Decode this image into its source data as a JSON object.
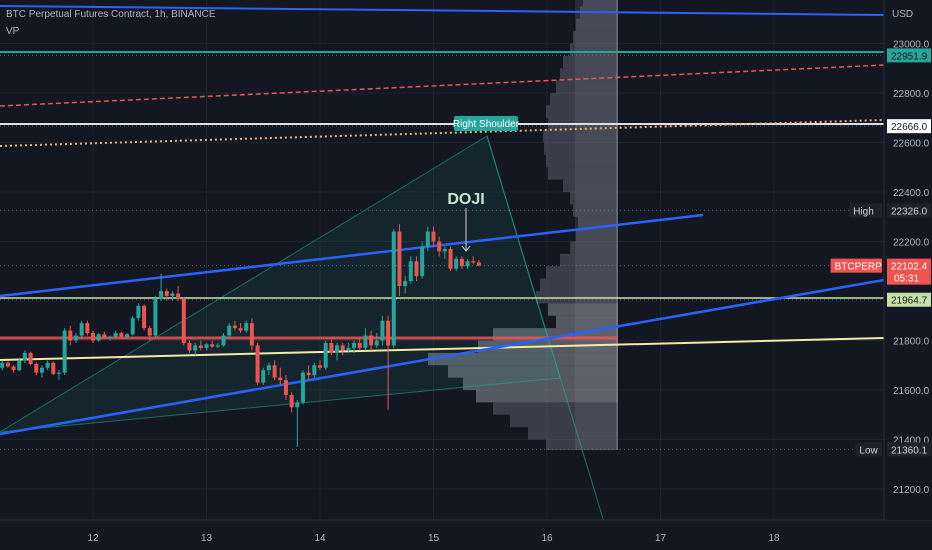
{
  "header": {
    "title": "BTC Perpetual Futures Contract, 1h, BINANCE",
    "indicator": "VP"
  },
  "chart_data": {
    "type": "candlestick",
    "currency": "USD",
    "ylim": [
      21100,
      23250
    ],
    "xlim": [
      11.0,
      19.2
    ],
    "x_ticks": [
      "12",
      "13",
      "14",
      "15",
      "16",
      "17",
      "18"
    ],
    "y_ticks": [
      "23000.0",
      "22800.0",
      "22600.0",
      "22400.0",
      "22200.0",
      "21800.0",
      "21600.0",
      "21400.0",
      "21200.0"
    ],
    "price_tags": [
      {
        "label": "",
        "value": "22951.9",
        "price": 22951.9,
        "style": "teal"
      },
      {
        "label": "",
        "value": "22666.0",
        "price": 22666.0,
        "style": "white"
      },
      {
        "label": "High",
        "value": "22326.0",
        "price": 22326.0,
        "style": "dark"
      },
      {
        "label": "BTCPERP",
        "value": "22102.4",
        "sub": "05:31",
        "price": 22102.4,
        "style": "red"
      },
      {
        "label": "",
        "value": "21964.7",
        "price": 21964.7,
        "style": "lime"
      },
      {
        "label": "Low",
        "value": "21360.1",
        "price": 21360.1,
        "style": "dark"
      }
    ],
    "annotations": [
      {
        "text": "Right Shoulder",
        "x": 15.5,
        "price": 22650
      },
      {
        "text": "DOJI",
        "x": 15.15,
        "price": 22360
      }
    ],
    "candles": [
      [
        11.05,
        21685,
        21705,
        21660,
        21690
      ],
      [
        11.1,
        21690,
        21700,
        21670,
        21675
      ],
      [
        11.15,
        21675,
        21695,
        21665,
        21690
      ],
      [
        11.2,
        21690,
        21720,
        21680,
        21710
      ],
      [
        11.25,
        21710,
        21715,
        21690,
        21695
      ],
      [
        11.3,
        21695,
        21700,
        21670,
        21680
      ],
      [
        11.35,
        21680,
        21730,
        21675,
        21720
      ],
      [
        11.4,
        21720,
        21760,
        21710,
        21750
      ],
      [
        11.45,
        21750,
        21755,
        21700,
        21705
      ],
      [
        11.5,
        21705,
        21710,
        21660,
        21670
      ],
      [
        11.55,
        21670,
        21700,
        21650,
        21690
      ],
      [
        11.6,
        21690,
        21720,
        21680,
        21710
      ],
      [
        11.65,
        21710,
        21715,
        21660,
        21665
      ],
      [
        11.7,
        21665,
        21680,
        21640,
        21670
      ],
      [
        11.75,
        21670,
        21850,
        21660,
        21840
      ],
      [
        11.8,
        21840,
        21860,
        21780,
        21800
      ],
      [
        11.85,
        21800,
        21830,
        21790,
        21820
      ],
      [
        11.9,
        21820,
        21880,
        21810,
        21870
      ],
      [
        11.95,
        21870,
        21880,
        21820,
        21830
      ],
      [
        12.0,
        21830,
        21840,
        21790,
        21800
      ],
      [
        12.05,
        21800,
        21830,
        21795,
        21825
      ],
      [
        12.1,
        21825,
        21835,
        21805,
        21810
      ],
      [
        12.15,
        21810,
        21820,
        21800,
        21815
      ],
      [
        12.2,
        21815,
        21840,
        21810,
        21830
      ],
      [
        12.25,
        21830,
        21835,
        21810,
        21815
      ],
      [
        12.3,
        21815,
        21830,
        21805,
        21825
      ],
      [
        12.35,
        21825,
        21900,
        21820,
        21890
      ],
      [
        12.4,
        21890,
        21950,
        21880,
        21940
      ],
      [
        12.45,
        21940,
        21945,
        21840,
        21850
      ],
      [
        12.5,
        21850,
        21860,
        21800,
        21820
      ],
      [
        12.55,
        21820,
        21980,
        21815,
        21970
      ],
      [
        12.6,
        21970,
        22070,
        21960,
        22000
      ],
      [
        12.65,
        22000,
        22010,
        21960,
        21980
      ],
      [
        12.7,
        21980,
        22000,
        21960,
        21990
      ],
      [
        12.75,
        21990,
        22020,
        21960,
        21970
      ],
      [
        12.8,
        21970,
        21975,
        21780,
        21790
      ],
      [
        12.85,
        21790,
        21800,
        21750,
        21760
      ],
      [
        12.9,
        21760,
        21790,
        21740,
        21780
      ],
      [
        12.95,
        21780,
        21800,
        21760,
        21770
      ],
      [
        13.0,
        21770,
        21790,
        21760,
        21785
      ],
      [
        13.05,
        21785,
        21800,
        21770,
        21775
      ],
      [
        13.1,
        21775,
        21790,
        21770,
        21780
      ],
      [
        13.15,
        21780,
        21830,
        21775,
        21820
      ],
      [
        13.2,
        21820,
        21870,
        21810,
        21860
      ],
      [
        13.25,
        21860,
        21880,
        21840,
        21850
      ],
      [
        13.3,
        21850,
        21870,
        21830,
        21840
      ],
      [
        13.35,
        21840,
        21880,
        21830,
        21870
      ],
      [
        13.4,
        21870,
        21890,
        21760,
        21780
      ],
      [
        13.45,
        21780,
        21790,
        21620,
        21630
      ],
      [
        13.5,
        21630,
        21690,
        21620,
        21680
      ],
      [
        13.55,
        21680,
        21710,
        21660,
        21700
      ],
      [
        13.6,
        21700,
        21720,
        21640,
        21650
      ],
      [
        13.65,
        21650,
        21690,
        21620,
        21640
      ],
      [
        13.7,
        21640,
        21660,
        21560,
        21580
      ],
      [
        13.75,
        21580,
        21590,
        21510,
        21530
      ],
      [
        13.8,
        21530,
        21560,
        21370,
        21550
      ],
      [
        13.85,
        21550,
        21680,
        21540,
        21670
      ],
      [
        13.9,
        21670,
        21700,
        21640,
        21660
      ],
      [
        13.95,
        21660,
        21710,
        21650,
        21700
      ],
      [
        14.0,
        21700,
        21720,
        21680,
        21690
      ],
      [
        14.05,
        21690,
        21800,
        21680,
        21790
      ],
      [
        14.1,
        21790,
        21810,
        21740,
        21750
      ],
      [
        14.15,
        21750,
        21790,
        21720,
        21780
      ],
      [
        14.2,
        21780,
        21790,
        21740,
        21760
      ],
      [
        14.25,
        21760,
        21790,
        21750,
        21770
      ],
      [
        14.3,
        21770,
        21800,
        21750,
        21790
      ],
      [
        14.35,
        21790,
        21810,
        21760,
        21770
      ],
      [
        14.4,
        21770,
        21850,
        21760,
        21820
      ],
      [
        14.45,
        21820,
        21840,
        21760,
        21780
      ],
      [
        14.5,
        21780,
        21830,
        21770,
        21800
      ],
      [
        14.55,
        21800,
        21900,
        21780,
        21880
      ],
      [
        14.6,
        21880,
        21900,
        21520,
        21780
      ],
      [
        14.65,
        21780,
        22250,
        21770,
        22240
      ],
      [
        14.7,
        22240,
        22270,
        21980,
        22020
      ],
      [
        14.75,
        22020,
        22060,
        21990,
        22040
      ],
      [
        14.8,
        22040,
        22140,
        22030,
        22120
      ],
      [
        14.85,
        22120,
        22140,
        22040,
        22060
      ],
      [
        14.9,
        22060,
        22200,
        22050,
        22180
      ],
      [
        14.95,
        22180,
        22260,
        22160,
        22240
      ],
      [
        15.0,
        22240,
        22260,
        22180,
        22200
      ],
      [
        15.05,
        22200,
        22220,
        22140,
        22160
      ],
      [
        15.1,
        22160,
        22180,
        22130,
        22170
      ],
      [
        15.15,
        22170,
        22180,
        22080,
        22090
      ],
      [
        15.2,
        22090,
        22140,
        22080,
        22130
      ],
      [
        15.25,
        22130,
        22140,
        22090,
        22100
      ],
      [
        15.3,
        22100,
        22130,
        22090,
        22120
      ],
      [
        15.35,
        22120,
        22140,
        22110,
        22115
      ],
      [
        15.4,
        22115,
        22125,
        22100,
        22102
      ]
    ],
    "volume_profile": [
      [
        23250,
        25
      ],
      [
        23200,
        35
      ],
      [
        23150,
        38
      ],
      [
        23100,
        42
      ],
      [
        23050,
        45
      ],
      [
        23000,
        48
      ],
      [
        22950,
        55
      ],
      [
        22900,
        58
      ],
      [
        22850,
        62
      ],
      [
        22800,
        68
      ],
      [
        22750,
        72
      ],
      [
        22700,
        70
      ],
      [
        22650,
        75
      ],
      [
        22600,
        74
      ],
      [
        22550,
        72
      ],
      [
        22500,
        70
      ],
      [
        22450,
        55
      ],
      [
        22400,
        48
      ],
      [
        22350,
        45
      ],
      [
        22300,
        40
      ],
      [
        22250,
        42
      ],
      [
        22200,
        48
      ],
      [
        22150,
        58
      ],
      [
        22100,
        72
      ],
      [
        22050,
        78
      ],
      [
        22000,
        82
      ],
      [
        21950,
        70
      ],
      [
        21900,
        62
      ],
      [
        21850,
        125
      ],
      [
        21800,
        140
      ],
      [
        21750,
        190
      ],
      [
        21700,
        170
      ],
      [
        21650,
        155
      ],
      [
        21600,
        142
      ],
      [
        21550,
        125
      ],
      [
        21500,
        108
      ],
      [
        21450,
        90
      ],
      [
        21400,
        72
      ],
      [
        21350,
        48
      ]
    ]
  }
}
